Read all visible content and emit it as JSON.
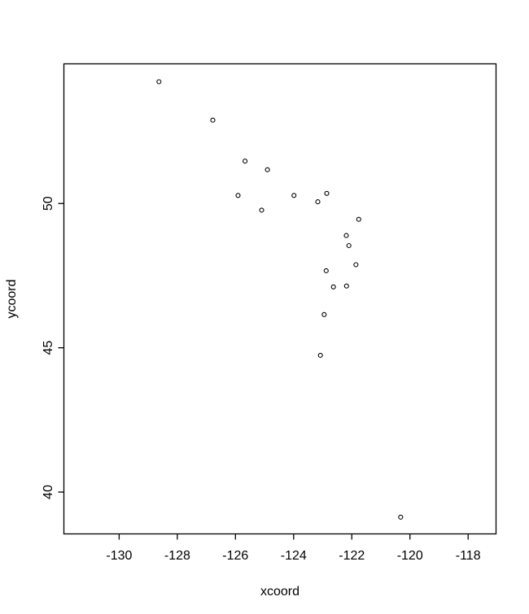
{
  "chart_data": {
    "type": "scatter",
    "title": "",
    "xlabel": "xcoord",
    "ylabel": "ycoord",
    "xlim": [
      -131.9,
      -117.04
    ],
    "ylim": [
      38.55,
      54.84
    ],
    "x_ticks": [
      -130,
      -128,
      -126,
      -124,
      -122,
      -120,
      -118
    ],
    "y_ticks": [
      40,
      45,
      50
    ],
    "grid": false,
    "legend": null,
    "point_style": "open-circle",
    "colors": {
      "background": "#ffffff",
      "foreground": "#000000"
    },
    "points": [
      {
        "x": -128.63,
        "y": 54.22
      },
      {
        "x": -126.78,
        "y": 52.89
      },
      {
        "x": -125.67,
        "y": 51.47
      },
      {
        "x": -124.9,
        "y": 51.17
      },
      {
        "x": -125.91,
        "y": 50.28
      },
      {
        "x": -125.1,
        "y": 49.77
      },
      {
        "x": -123.99,
        "y": 50.28
      },
      {
        "x": -123.17,
        "y": 50.06
      },
      {
        "x": -122.86,
        "y": 50.35
      },
      {
        "x": -121.76,
        "y": 49.45
      },
      {
        "x": -122.19,
        "y": 48.89
      },
      {
        "x": -122.1,
        "y": 48.54
      },
      {
        "x": -121.86,
        "y": 47.88
      },
      {
        "x": -122.88,
        "y": 47.67
      },
      {
        "x": -122.63,
        "y": 47.11
      },
      {
        "x": -122.18,
        "y": 47.14
      },
      {
        "x": -122.95,
        "y": 46.15
      },
      {
        "x": -123.08,
        "y": 44.74
      },
      {
        "x": -120.32,
        "y": 39.13
      }
    ]
  }
}
